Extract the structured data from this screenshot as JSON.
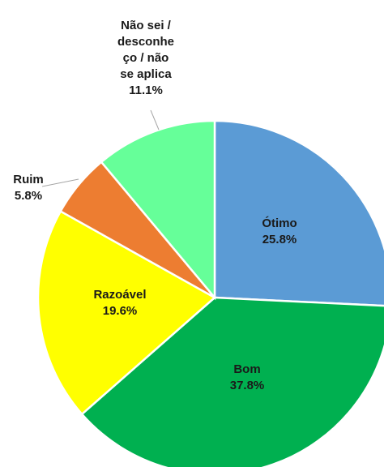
{
  "chart_data": {
    "type": "pie",
    "categories": [
      "Ótimo",
      "Bom",
      "Razoável",
      "Ruim",
      "Não sei /\ndesconhe\nço / não\nse aplica"
    ],
    "values": [
      25.8,
      37.8,
      19.6,
      5.8,
      11.1
    ],
    "value_labels": [
      "25.8%",
      "37.8%",
      "19.6%",
      "5.8%",
      "11.1%"
    ],
    "colors": [
      "#5b9bd5",
      "#00b050",
      "#ffff00",
      "#ed7d31",
      "#66ff99"
    ]
  }
}
